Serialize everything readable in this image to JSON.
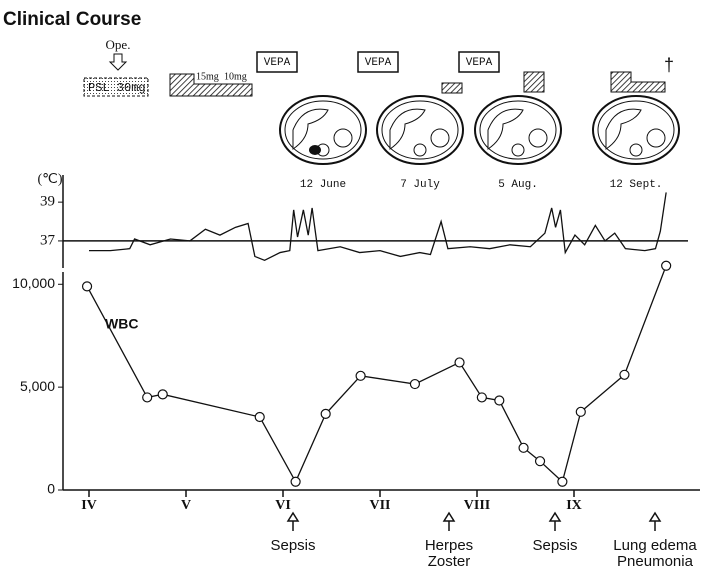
{
  "title": "Clinical Course",
  "treatments": {
    "ope": "Ope.",
    "psl": "PSL 30mg",
    "dose1": "15mg",
    "dose2": "10mg",
    "vepa": [
      "VEPA",
      "VEPA",
      "VEPA"
    ],
    "death": "†"
  },
  "ct_scans": [
    "12 June",
    "7 July",
    "5 Aug.",
    "12 Sept."
  ],
  "events": [
    [
      "Sepsis"
    ],
    [
      "Herpes",
      "Zoster"
    ],
    [
      "Sepsis"
    ],
    [
      "Lung edema",
      "Pneumonia"
    ]
  ],
  "chart_data": [
    {
      "type": "line",
      "y_label": "(℃)",
      "xlim": [
        3.75,
        10.6
      ],
      "ylim": [
        35.5,
        40.4
      ],
      "yticks": [
        37,
        39
      ],
      "reference_line": 37,
      "color": "#111111",
      "x": [
        4.0,
        4.22,
        4.42,
        4.47,
        4.63,
        4.84,
        5.04,
        5.2,
        5.35,
        5.51,
        5.64,
        5.71,
        5.81,
        5.97,
        6.07,
        6.11,
        6.15,
        6.21,
        6.26,
        6.3,
        6.36,
        6.59,
        6.79,
        7.0,
        7.21,
        7.41,
        7.52,
        7.63,
        7.7,
        7.93,
        8.13,
        8.34,
        8.55,
        8.7,
        8.77,
        8.81,
        8.86,
        8.91,
        9.01,
        9.11,
        9.22,
        9.32,
        9.42,
        9.53,
        9.73,
        9.84,
        9.89,
        9.95
      ],
      "values": [
        36.5,
        36.5,
        36.6,
        37.1,
        36.8,
        37.1,
        37.0,
        37.6,
        37.3,
        37.7,
        37.9,
        36.2,
        36.0,
        36.4,
        36.5,
        38.6,
        37.2,
        38.6,
        37.3,
        38.7,
        36.5,
        36.7,
        36.4,
        36.5,
        36.2,
        36.4,
        36.3,
        38.0,
        36.6,
        36.7,
        36.6,
        36.8,
        36.7,
        37.4,
        38.7,
        37.7,
        38.6,
        36.4,
        37.3,
        36.8,
        37.8,
        37.0,
        37.4,
        36.6,
        36.5,
        36.6,
        37.5,
        39.5
      ]
    },
    {
      "type": "line",
      "series_label": "WBC",
      "xlim": [
        3.75,
        10.6
      ],
      "ylim": [
        0,
        10500
      ],
      "color": "#111111",
      "yticks": [
        0,
        {
          "value": 5000,
          "label": "5,000"
        },
        {
          "value": 10000,
          "label": "10,000"
        }
      ],
      "xticks": [
        {
          "value": 4,
          "label": "IV"
        },
        {
          "value": 5,
          "label": "V"
        },
        {
          "value": 6,
          "label": "VI"
        },
        {
          "value": 7,
          "label": "VII"
        },
        {
          "value": 8,
          "label": "VIII"
        },
        {
          "value": 9,
          "label": "IX"
        }
      ],
      "x": [
        3.98,
        4.6,
        4.76,
        5.76,
        6.13,
        6.44,
        6.8,
        7.36,
        7.82,
        8.05,
        8.23,
        8.48,
        8.65,
        8.88,
        9.07,
        9.52,
        9.95
      ],
      "values": [
        9900,
        4500,
        4650,
        3550,
        400,
        3700,
        5550,
        5150,
        6200,
        4500,
        4350,
        2050,
        1400,
        400,
        3800,
        5600,
        10900
      ]
    }
  ]
}
